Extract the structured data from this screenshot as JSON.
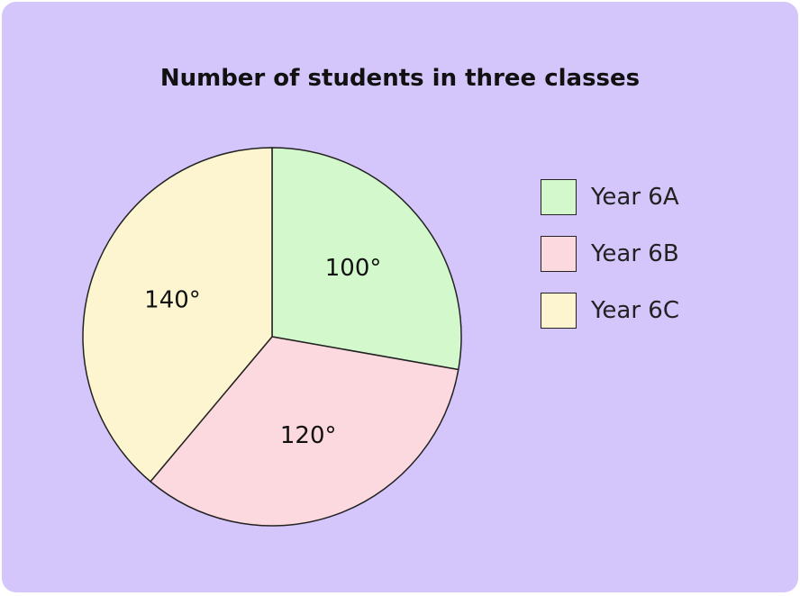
{
  "chart_data": {
    "type": "pie",
    "title": "Number of students in three classes",
    "slices": [
      {
        "name": "Year 6A",
        "value": 100,
        "label": "100°",
        "color": "#d2f8cc"
      },
      {
        "name": "Year 6B",
        "value": 120,
        "label": "120°",
        "color": "#fcd9df"
      },
      {
        "name": "Year 6C",
        "value": 140,
        "label": "140°",
        "color": "#fcf5cf"
      }
    ],
    "start_angle": 0,
    "direction": "clockwise",
    "legend_position": "right",
    "stroke_color": "#222222"
  },
  "background": "#d4c5fa"
}
